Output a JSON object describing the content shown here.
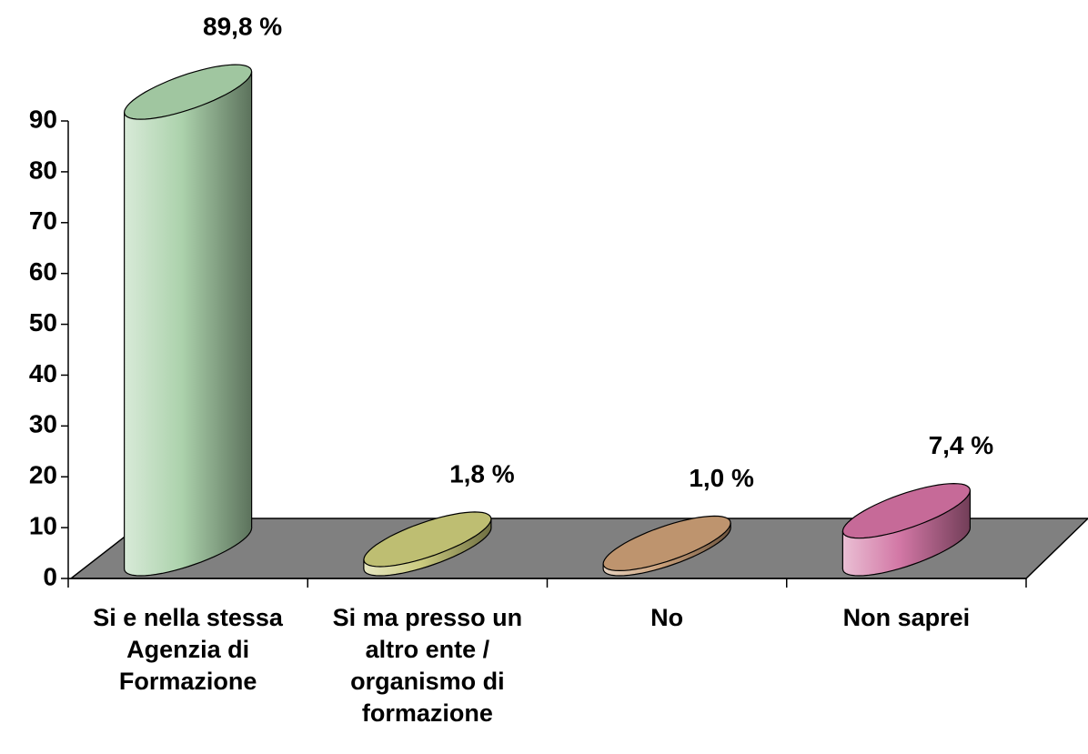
{
  "chart_data": {
    "type": "bar",
    "categories": [
      "Si e nella stessa Agenzia di Formazione",
      "Si ma presso un altro ente / organismo di formazione",
      "No",
      "Non saprei"
    ],
    "values": [
      89.8,
      1.8,
      1.0,
      7.4
    ],
    "value_labels": [
      "89,8 %",
      "1,8 %",
      "1,0 %",
      "7,4 %"
    ],
    "colors": [
      "#a8d0a8",
      "#c8c878",
      "#c89c74",
      "#d070a0"
    ],
    "ylim": [
      0,
      90
    ],
    "yticks": [
      0,
      10,
      20,
      30,
      40,
      50,
      60,
      70,
      80,
      90
    ]
  }
}
